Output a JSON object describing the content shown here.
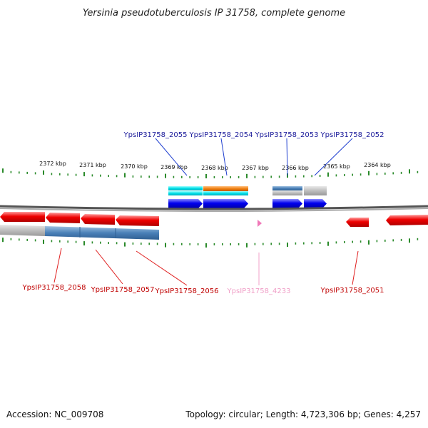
{
  "title": "Yersinia pseudotuberculosis IP 31758, complete genome",
  "kbp_labels": [
    "2372 kbp",
    "2371 kbp",
    "2370 kbp",
    "2369 kbp",
    "2368 kbp",
    "2367 kbp",
    "2366 kbp",
    "2365 kbp",
    "2364 kbp"
  ],
  "top_genes": [
    "YpsIP31758_2055",
    "YpsIP31758_2054",
    "YpsIP31758_2053",
    "YpsIP31758_2052"
  ],
  "bottom_genes": [
    "YpsIP31758_2058",
    "YpsIP31758_2057",
    "YpsIP31758_2056",
    "YpsIP31758_4233",
    "YpsIP31758_2051"
  ],
  "footer": {
    "accession": "Accession: NC_009708",
    "summary": "Topology: circular; Length: 4,723,306 bp; Genes: 4,257"
  },
  "colors": {
    "forward": "#0000ee",
    "reverse": "#ee0000",
    "ticks": "#2a8a2a",
    "cyan": "#00e0e8",
    "orange": "#f08010",
    "steel": "#4a80b8",
    "gray": "#bdbdbd",
    "pink": "#f078b8"
  }
}
